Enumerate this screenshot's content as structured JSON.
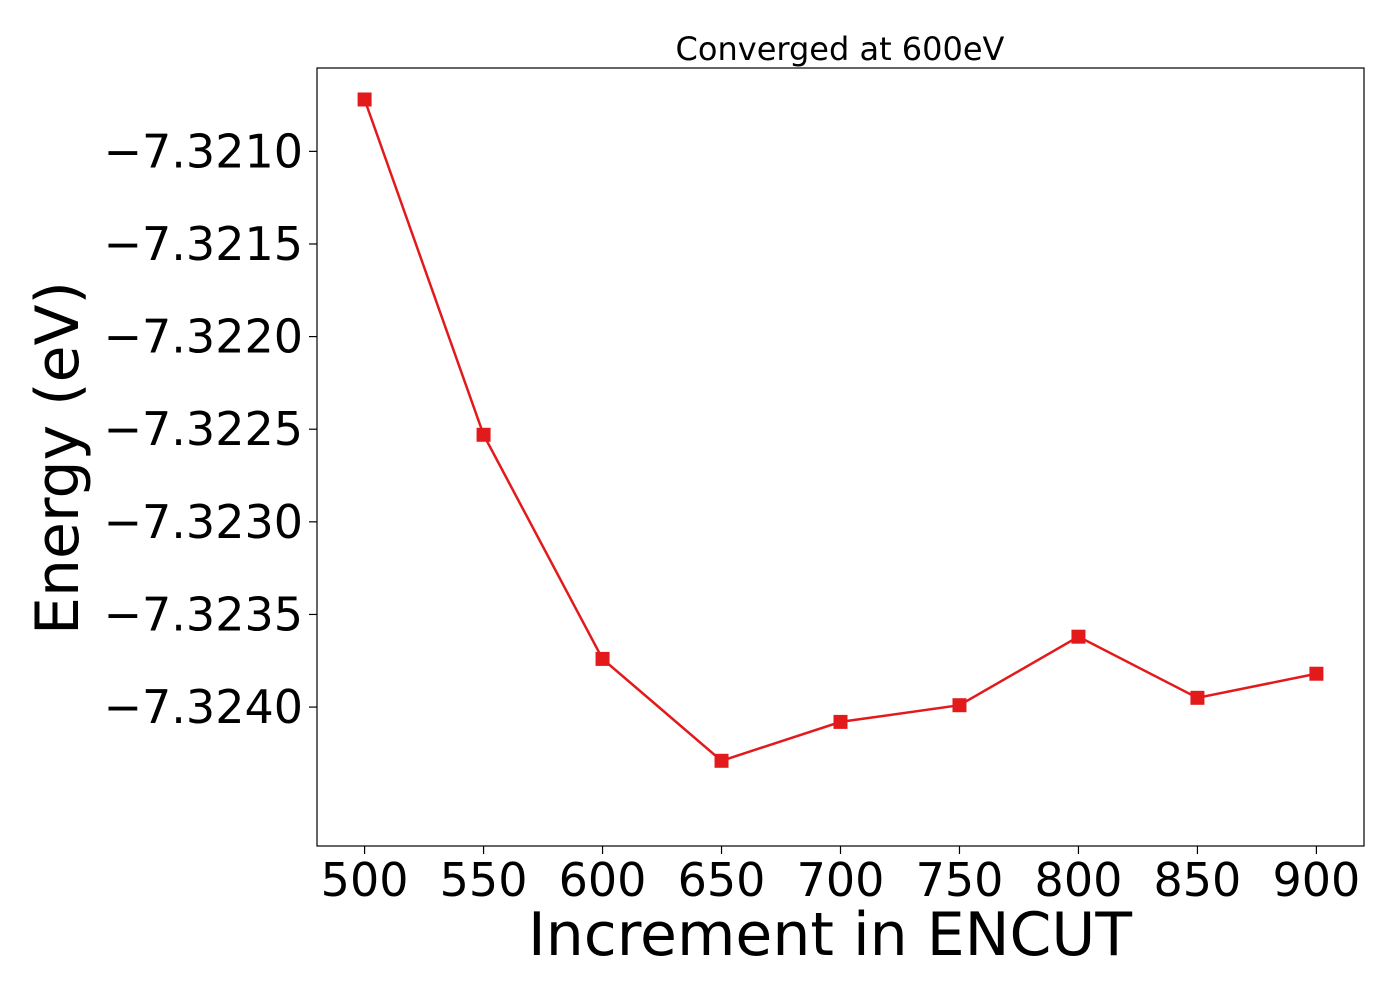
{
  "chart_data": {
    "type": "line",
    "title": "Converged at 600eV",
    "xlabel": "Increment in ENCUT",
    "ylabel": "Energy (eV)",
    "x": [
      500,
      550,
      600,
      650,
      700,
      750,
      800,
      850,
      900
    ],
    "series": [
      {
        "values": [
          -7.32072,
          -7.32253,
          -7.32374,
          -7.32429,
          -7.32408,
          -7.32399,
          -7.32362,
          -7.32395,
          -7.32382
        ],
        "color": "#e31a1c",
        "marker": "square"
      }
    ],
    "x_ticks": [
      500,
      550,
      600,
      650,
      700,
      750,
      800,
      850,
      900
    ],
    "x_tick_labels": [
      "500",
      "550",
      "600",
      "650",
      "700",
      "750",
      "800",
      "850",
      "900"
    ],
    "y_ticks": [
      -7.321,
      -7.3215,
      -7.322,
      -7.3225,
      -7.323,
      -7.3235,
      -7.324
    ],
    "y_tick_labels": [
      "−7.3210",
      "−7.3215",
      "−7.3220",
      "−7.3225",
      "−7.3230",
      "−7.3235",
      "−7.3240"
    ],
    "xlim": [
      480,
      920
    ],
    "ylim": [
      -7.32475,
      -7.32055
    ],
    "grid": false,
    "legend": "none"
  }
}
